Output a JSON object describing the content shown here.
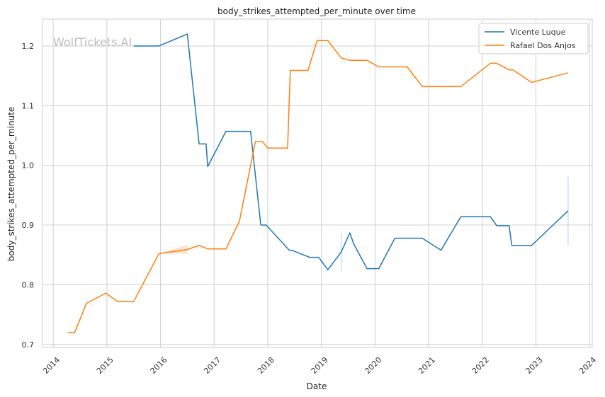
{
  "chart_data": {
    "type": "line",
    "title": "body_strikes_attempted_per_minute over time",
    "xlabel": "Date",
    "ylabel": "body_strikes_attempted_per_minute",
    "watermark": "WolfTickets.AI",
    "x_ticks": [
      "2014",
      "2015",
      "2016",
      "2017",
      "2018",
      "2019",
      "2020",
      "2021",
      "2022",
      "2023",
      "2024"
    ],
    "y_ticks": [
      "0.7",
      "0.8",
      "0.9",
      "1.0",
      "1.1",
      "1.2"
    ],
    "xlim": [
      2013.8,
      2024.05
    ],
    "ylim": [
      0.695,
      1.245
    ],
    "grid": true,
    "legend_placement": "top-right",
    "series": [
      {
        "name": "Vicente Luque",
        "color": "#1f77b4",
        "points": [
          [
            2015.5,
            1.2
          ],
          [
            2015.97,
            1.2
          ],
          [
            2016.5,
            1.22
          ],
          [
            2016.72,
            1.036
          ],
          [
            2016.85,
            1.036
          ],
          [
            2016.88,
            0.998
          ],
          [
            2017.22,
            1.057
          ],
          [
            2017.68,
            1.057
          ],
          [
            2017.87,
            0.9
          ],
          [
            2017.97,
            0.9
          ],
          [
            2018.4,
            0.858
          ],
          [
            2018.47,
            0.857
          ],
          [
            2018.78,
            0.846
          ],
          [
            2018.95,
            0.846
          ],
          [
            2019.12,
            0.825
          ],
          [
            2019.37,
            0.855
          ],
          [
            2019.53,
            0.887
          ],
          [
            2019.6,
            0.869
          ],
          [
            2019.85,
            0.827
          ],
          [
            2020.07,
            0.827
          ],
          [
            2020.37,
            0.878
          ],
          [
            2020.5,
            0.878
          ],
          [
            2020.88,
            0.878
          ],
          [
            2021.23,
            0.858
          ],
          [
            2021.6,
            0.914
          ],
          [
            2022.15,
            0.914
          ],
          [
            2022.27,
            0.899
          ],
          [
            2022.5,
            0.899
          ],
          [
            2022.55,
            0.866
          ],
          [
            2022.92,
            0.866
          ],
          [
            2023.6,
            0.924
          ]
        ],
        "error_bars": [
          {
            "x": 2019.37,
            "low": 0.823,
            "high": 0.887
          },
          {
            "x": 2023.6,
            "low": 0.866,
            "high": 0.982
          }
        ]
      },
      {
        "name": "Rafael Dos Anjos",
        "color": "#ff7f0e",
        "points": [
          [
            2014.27,
            0.72
          ],
          [
            2014.4,
            0.72
          ],
          [
            2014.62,
            0.769
          ],
          [
            2014.98,
            0.786
          ],
          [
            2015.2,
            0.772
          ],
          [
            2015.5,
            0.772
          ],
          [
            2015.97,
            0.852
          ],
          [
            2016.5,
            0.859
          ],
          [
            2016.72,
            0.866
          ],
          [
            2016.88,
            0.86
          ],
          [
            2017.22,
            0.86
          ],
          [
            2017.47,
            0.906
          ],
          [
            2017.77,
            1.04
          ],
          [
            2017.9,
            1.04
          ],
          [
            2018.0,
            1.029
          ],
          [
            2018.37,
            1.029
          ],
          [
            2018.42,
            1.159
          ],
          [
            2018.75,
            1.159
          ],
          [
            2018.92,
            1.209
          ],
          [
            2019.12,
            1.209
          ],
          [
            2019.37,
            1.18
          ],
          [
            2019.53,
            1.176
          ],
          [
            2019.85,
            1.176
          ],
          [
            2020.07,
            1.165
          ],
          [
            2020.6,
            1.165
          ],
          [
            2020.88,
            1.132
          ],
          [
            2021.6,
            1.132
          ],
          [
            2022.15,
            1.171
          ],
          [
            2022.27,
            1.171
          ],
          [
            2022.5,
            1.16
          ],
          [
            2022.57,
            1.16
          ],
          [
            2022.92,
            1.139
          ],
          [
            2023.6,
            1.155
          ]
        ],
        "bands": [
          {
            "x0": 2015.97,
            "x1": 2016.5,
            "low0": 0.852,
            "high0": 0.852,
            "low1": 0.852,
            "high1": 0.867
          }
        ]
      }
    ]
  }
}
